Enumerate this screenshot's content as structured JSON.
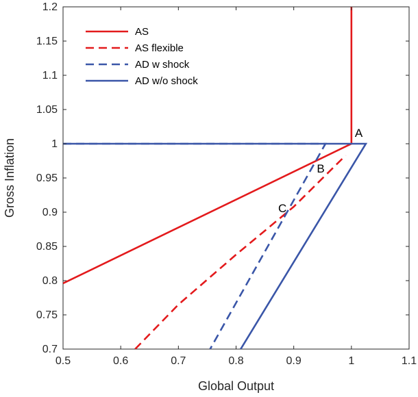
{
  "chart_data": {
    "type": "line",
    "title": "",
    "xlabel": "Global Output",
    "ylabel": "Gross Inflation",
    "xlim": [
      0.5,
      1.1
    ],
    "ylim": [
      0.7,
      1.2
    ],
    "xticks": [
      "0.5",
      "0.6",
      "0.7",
      "0.8",
      "0.9",
      "1",
      "1.1"
    ],
    "yticks": [
      "0.7",
      "0.75",
      "0.8",
      "0.85",
      "0.9",
      "0.95",
      "1",
      "1.05",
      "1.1",
      "1.15",
      "1.2"
    ],
    "grid": false,
    "legend_position": "top-left",
    "series": [
      {
        "name": "AS",
        "color": "#e31a1c",
        "style": "solid",
        "x": [
          0.5,
          1.0,
          1.0
        ],
        "y": [
          0.796,
          1.0,
          1.2
        ]
      },
      {
        "name": "AS flexible",
        "color": "#e31a1c",
        "style": "dashed",
        "x": [
          0.625,
          0.7,
          0.8,
          0.9,
          0.99
        ],
        "y": [
          0.7,
          0.765,
          0.838,
          0.908,
          0.983
        ]
      },
      {
        "name": "AD w shock",
        "color": "#3a56a8",
        "style": "dashed",
        "x": [
          0.5,
          0.955,
          0.755
        ],
        "y": [
          1.0,
          1.0,
          0.7
        ]
      },
      {
        "name": "AD w/o shock",
        "color": "#3a56a8",
        "style": "solid",
        "x": [
          0.5,
          1.025,
          0.808
        ],
        "y": [
          1.0,
          1.0,
          0.7
        ]
      }
    ],
    "annotations": [
      {
        "text": "A",
        "x": 1.006,
        "y": 1.01
      },
      {
        "text": "B",
        "x": 0.94,
        "y": 0.958
      },
      {
        "text": "C",
        "x": 0.873,
        "y": 0.9
      }
    ]
  }
}
